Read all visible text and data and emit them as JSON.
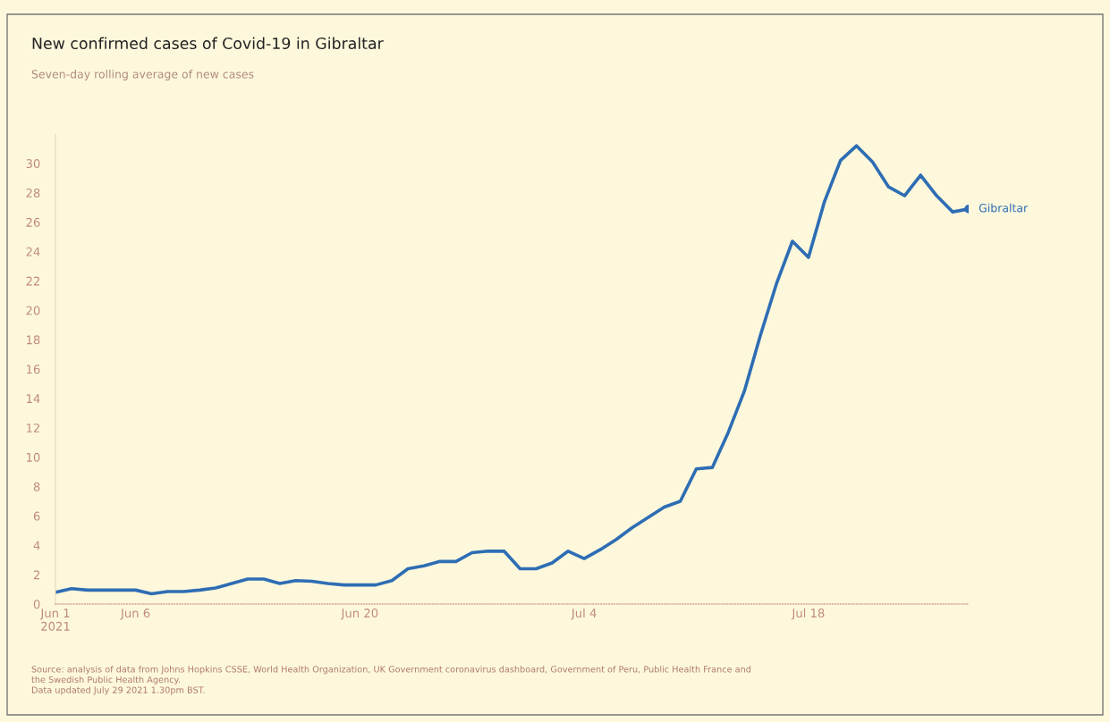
{
  "chart_data": {
    "type": "line",
    "title": "New confirmed cases of Covid-19 in Gibraltar",
    "subtitle": "Seven-day rolling average of new cases",
    "x": [
      "2021-06-01",
      "2021-06-02",
      "2021-06-03",
      "2021-06-04",
      "2021-06-05",
      "2021-06-06",
      "2021-06-07",
      "2021-06-08",
      "2021-06-09",
      "2021-06-10",
      "2021-06-11",
      "2021-06-12",
      "2021-06-13",
      "2021-06-14",
      "2021-06-15",
      "2021-06-16",
      "2021-06-17",
      "2021-06-18",
      "2021-06-19",
      "2021-06-20",
      "2021-06-21",
      "2021-06-22",
      "2021-06-23",
      "2021-06-24",
      "2021-06-25",
      "2021-06-26",
      "2021-06-27",
      "2021-06-28",
      "2021-06-29",
      "2021-06-30",
      "2021-07-01",
      "2021-07-02",
      "2021-07-03",
      "2021-07-04",
      "2021-07-05",
      "2021-07-06",
      "2021-07-07",
      "2021-07-08",
      "2021-07-09",
      "2021-07-10",
      "2021-07-11",
      "2021-07-12",
      "2021-07-13",
      "2021-07-14",
      "2021-07-15",
      "2021-07-16",
      "2021-07-17",
      "2021-07-18",
      "2021-07-19",
      "2021-07-20",
      "2021-07-21",
      "2021-07-22",
      "2021-07-23",
      "2021-07-24",
      "2021-07-25",
      "2021-07-26",
      "2021-07-27",
      "2021-07-28"
    ],
    "series": [
      {
        "name": "Gibraltar",
        "color": "#2e6db4",
        "values": [
          0.8,
          1.05,
          0.95,
          0.95,
          0.95,
          0.95,
          0.7,
          0.85,
          0.85,
          0.95,
          1.1,
          1.4,
          1.7,
          1.7,
          1.4,
          1.6,
          1.55,
          1.4,
          1.3,
          1.3,
          1.3,
          1.6,
          2.4,
          2.6,
          2.9,
          2.9,
          3.5,
          3.6,
          3.6,
          2.4,
          2.4,
          2.8,
          3.6,
          3.1,
          3.7,
          4.4,
          5.2,
          5.9,
          6.6,
          7.0,
          9.2,
          9.3,
          11.7,
          14.5,
          18.3,
          21.8,
          24.7,
          23.6,
          27.4,
          30.2,
          31.2,
          30.1,
          28.4,
          27.8,
          29.2,
          27.8,
          26.7,
          26.9
        ]
      }
    ],
    "xlim": [
      "2021-06-01",
      "2021-07-28"
    ],
    "xticks": [
      {
        "value": "2021-06-01",
        "label": "Jun 1\n2021"
      },
      {
        "value": "2021-06-06",
        "label": "Jun 6"
      },
      {
        "value": "2021-06-20",
        "label": "Jun 20"
      },
      {
        "value": "2021-07-04",
        "label": "Jul 4"
      },
      {
        "value": "2021-07-18",
        "label": "Jul 18"
      }
    ],
    "ylim": [
      0,
      32
    ],
    "yticks": [
      0,
      2,
      4,
      6,
      8,
      10,
      12,
      14,
      16,
      18,
      20,
      22,
      24,
      26,
      28,
      30
    ],
    "grid": false,
    "legend": false,
    "marker": "none",
    "line_style": "solid",
    "annotations": [
      "Source: analysis of data from Johns Hopkins CSSE, World Health Organization, UK Government coronavirus dashboard, Government of Peru, Public Health France and\nthe Swedish Public Health Agency.\nData updated July 29 2021 1.30pm BST."
    ]
  }
}
